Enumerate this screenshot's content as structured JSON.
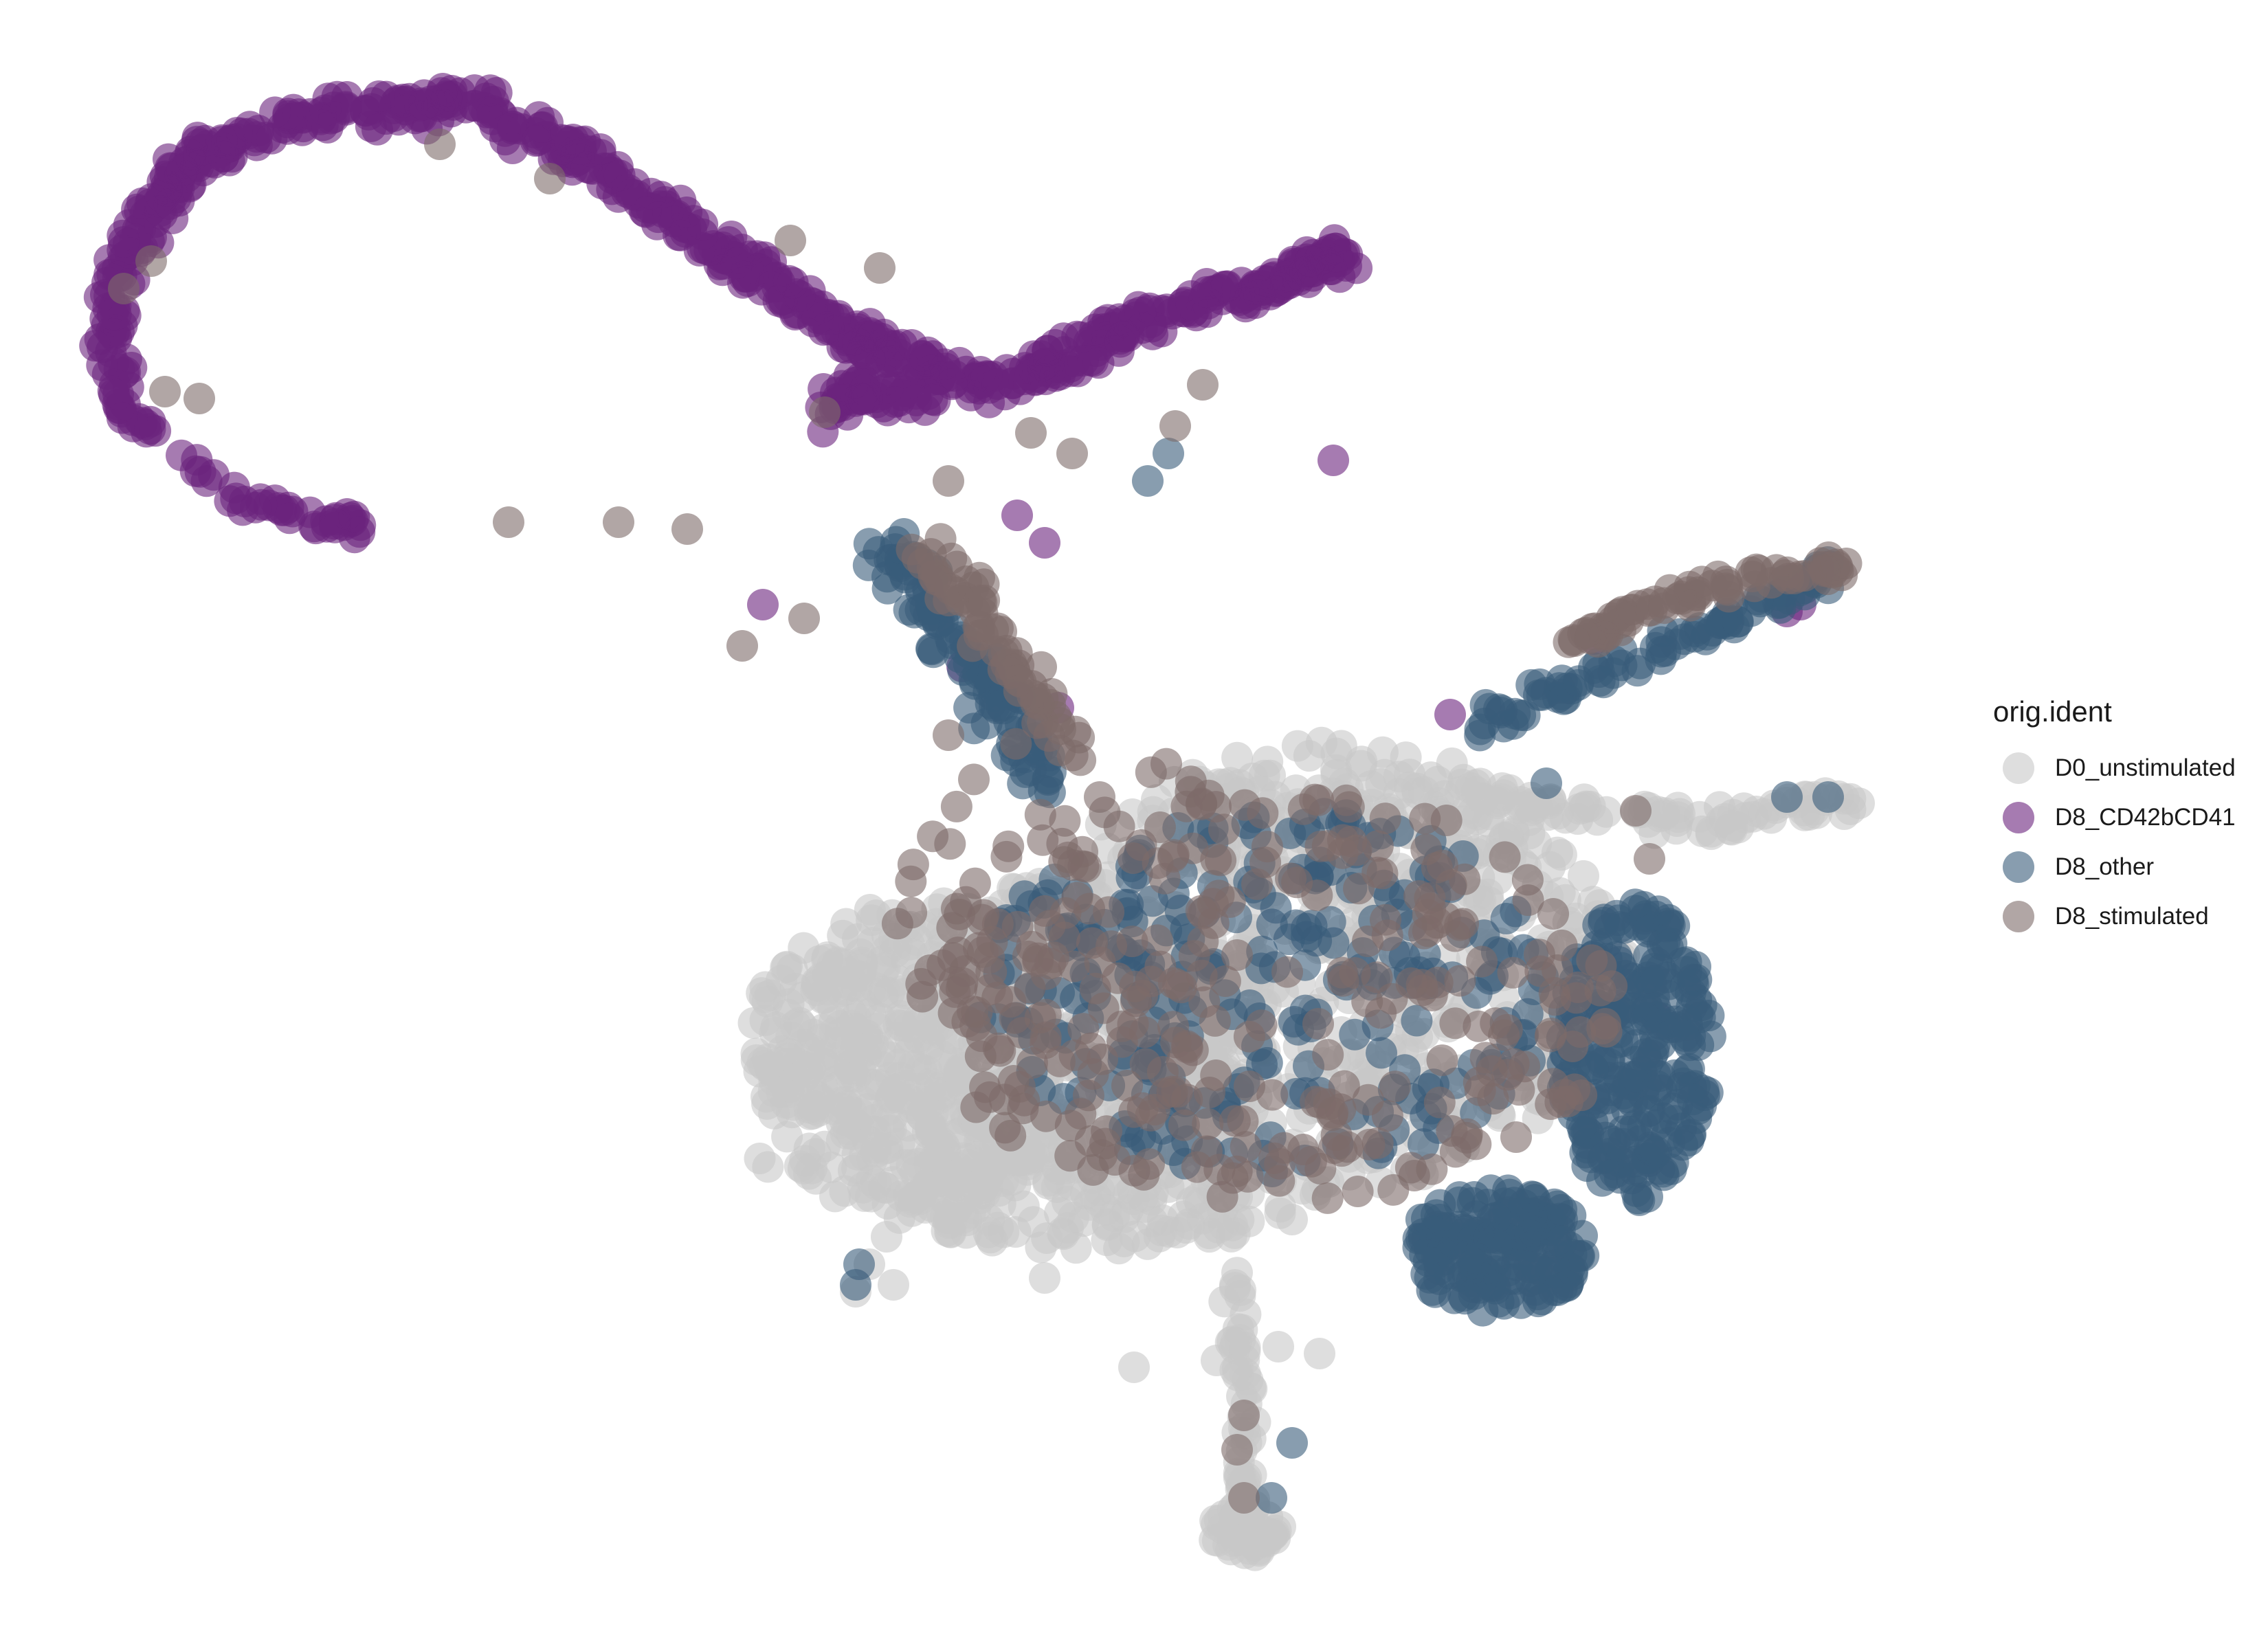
{
  "chart_data": {
    "type": "scatter",
    "title": "",
    "xlabel": "",
    "ylabel": "",
    "grid": false,
    "axes_visible": false,
    "legend_position": "right",
    "legend_title": "orig.ident",
    "series": [
      {
        "name": "D0_unstimulated",
        "color": "#c8c8c8",
        "opacity": 0.6
      },
      {
        "name": "D8_CD42bCD41",
        "color": "#6a237d",
        "opacity": 0.6
      },
      {
        "name": "D8_other",
        "color": "#385c7a",
        "opacity": 0.6
      },
      {
        "name": "D8_stimulated",
        "color": "#7d6b69",
        "opacity": 0.6
      }
    ]
  }
}
